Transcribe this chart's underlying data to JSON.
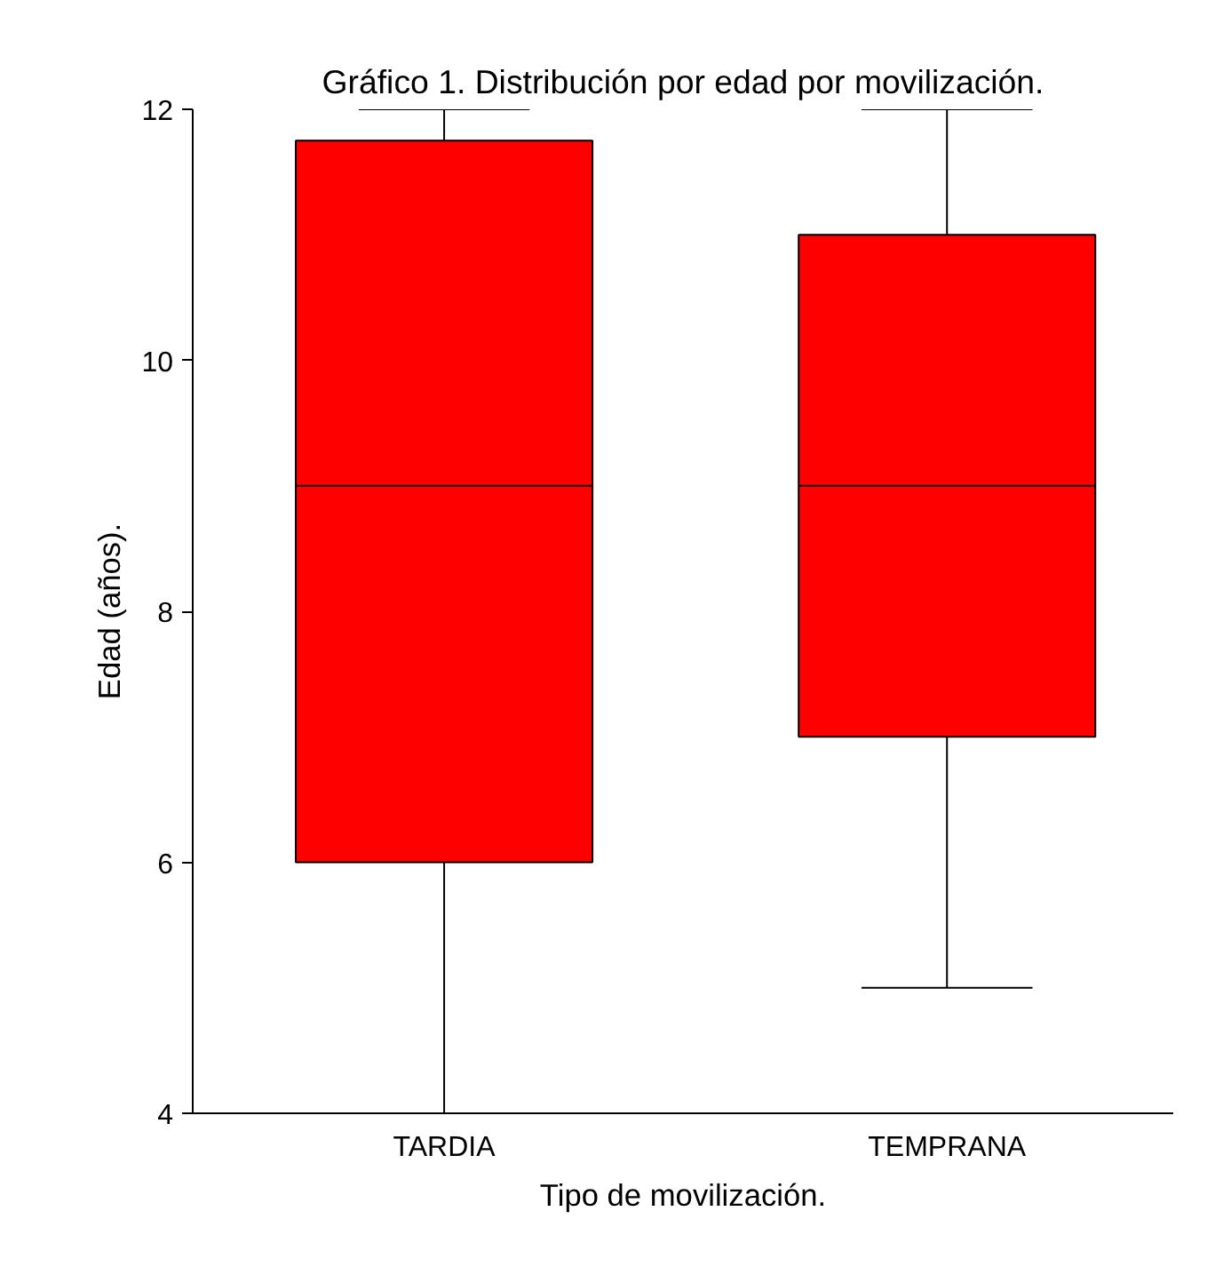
{
  "chart_data": {
    "type": "box",
    "title": "Gráfico 1. Distribución por edad por movilización.",
    "xlabel": "Tipo de movilización.",
    "ylabel": "Edad (años).",
    "categories": [
      "TARDIA",
      "TEMPRANA"
    ],
    "series": [
      {
        "color": "#ff0000",
        "boxes": [
          {
            "low": 4,
            "q1": 6,
            "median": 9,
            "q3": 11.75,
            "high": 12
          },
          {
            "low": 5,
            "q1": 7,
            "median": 9,
            "q3": 11,
            "high": 12
          }
        ]
      }
    ],
    "ylim": [
      4,
      12
    ],
    "yticks": [
      4,
      6,
      8,
      10,
      12
    ],
    "grid": false
  }
}
